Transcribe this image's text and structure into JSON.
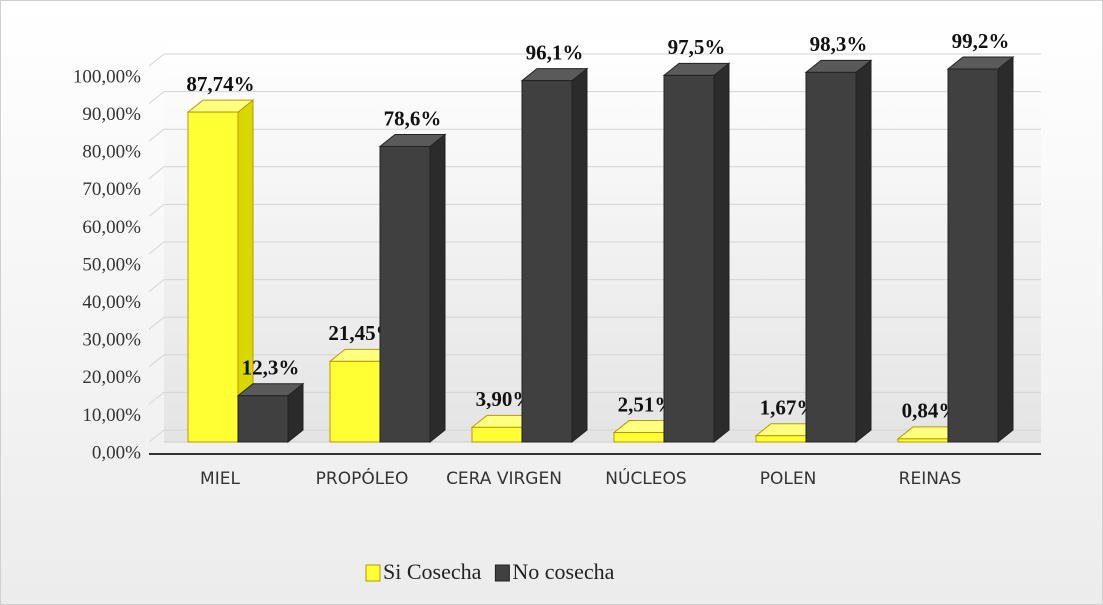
{
  "chart_data": {
    "type": "bar3d",
    "categories": [
      "MIEL",
      "PROPÓLEO",
      "CERA VIRGEN",
      "NÚCLEOS",
      "POLEN",
      "REINAS"
    ],
    "series": [
      {
        "name": "Si Cosecha",
        "color": "#ffff33",
        "values": [
          87.74,
          21.45,
          3.9,
          2.51,
          1.67,
          0.84
        ],
        "value_labels": [
          "87,74%",
          "21,45%",
          "3,90%",
          "2,51%",
          "1,67%",
          "0,84%"
        ]
      },
      {
        "name": "No cosecha",
        "color": "#404040",
        "values": [
          12.3,
          78.6,
          96.1,
          97.5,
          98.3,
          99.2
        ],
        "value_labels": [
          "12,3%",
          "78,6%",
          "96,1%",
          "97,5%",
          "98,3%",
          "99,2%"
        ]
      }
    ],
    "ylim": [
      0,
      100
    ],
    "yticks": [
      {
        "value": 0,
        "label": "0,00%"
      },
      {
        "value": 10,
        "label": "10,00%"
      },
      {
        "value": 20,
        "label": "20,00%"
      },
      {
        "value": 30,
        "label": "30,00%"
      },
      {
        "value": 40,
        "label": "40,00%"
      },
      {
        "value": 50,
        "label": "50,00%"
      },
      {
        "value": 60,
        "label": "60,00%"
      },
      {
        "value": 70,
        "label": "70,00%"
      },
      {
        "value": 80,
        "label": "80,00%"
      },
      {
        "value": 90,
        "label": "90,00%"
      },
      {
        "value": 100,
        "label": "100,00%"
      }
    ],
    "grid": true,
    "legend": "bottom"
  }
}
